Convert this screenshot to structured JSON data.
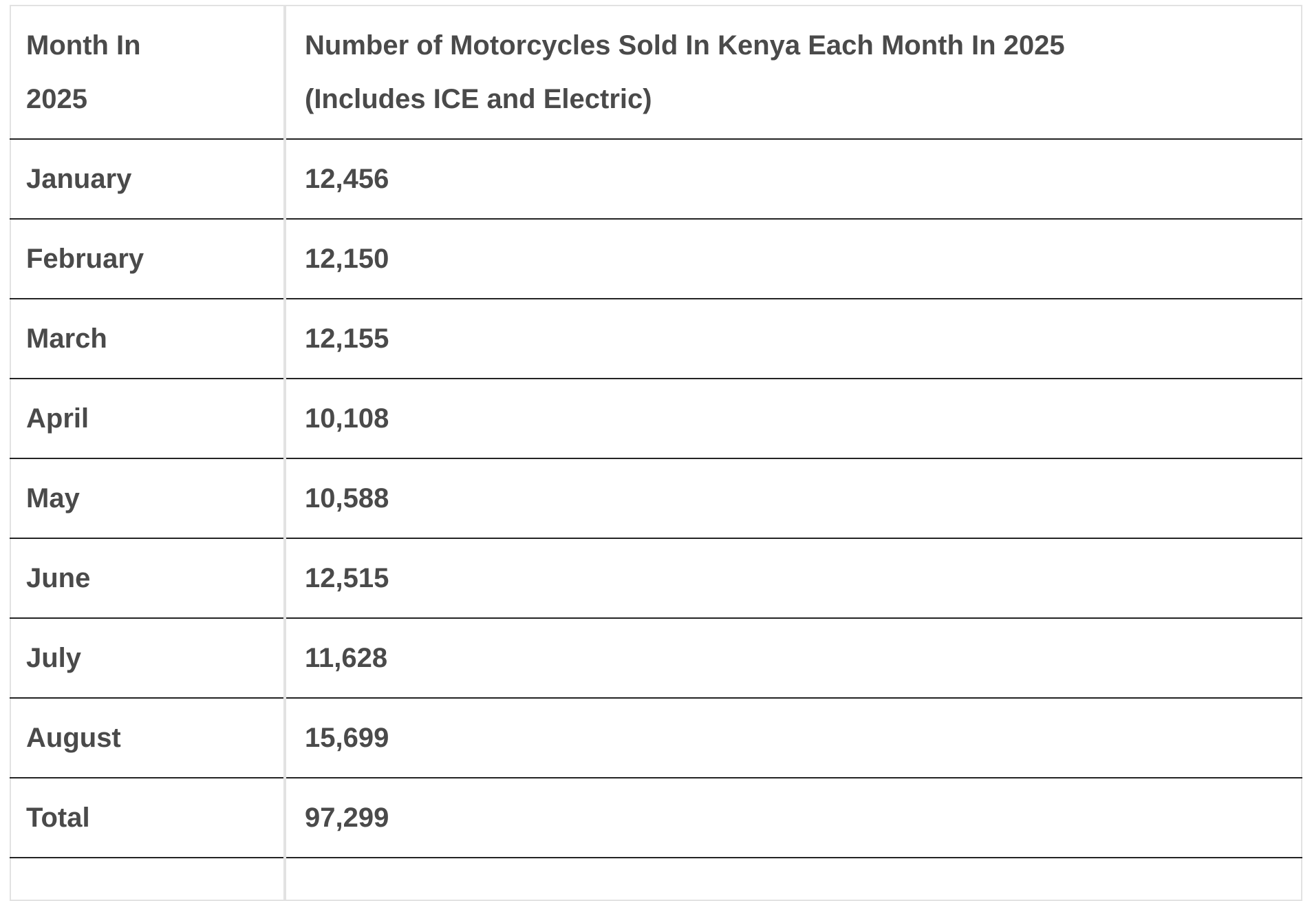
{
  "table": {
    "header": {
      "col1_lines": [
        "Month In",
        "2025"
      ],
      "col2_lines": [
        "Number of Motorcycles Sold In Kenya Each Month In 2025",
        "(Includes ICE and Electric)"
      ]
    },
    "rows": [
      {
        "label": "January",
        "value": "12,456"
      },
      {
        "label": "February",
        "value": "12,150"
      },
      {
        "label": "March",
        "value": "12,155"
      },
      {
        "label": "April",
        "value": "10,108"
      },
      {
        "label": "May",
        "value": "10,588"
      },
      {
        "label": "June",
        "value": "12,515"
      },
      {
        "label": "July",
        "value": "11,628"
      },
      {
        "label": "August",
        "value": "15,699"
      },
      {
        "label": "Total",
        "value": "97,299"
      }
    ]
  },
  "colors": {
    "text": "#4a4a4a",
    "row_separator": "#232323",
    "grid_light": "#e2e2e2",
    "background": "#ffffff"
  },
  "chart_data": {
    "type": "table",
    "title": "Number of Motorcycles Sold In Kenya Each Month In 2025 (Includes ICE and Electric)",
    "columns": [
      "Month In 2025",
      "Number of Motorcycles Sold In Kenya Each Month In 2025 (Includes ICE and Electric)"
    ],
    "categories": [
      "January",
      "February",
      "March",
      "April",
      "May",
      "June",
      "July",
      "August",
      "Total"
    ],
    "values": [
      12456,
      12150,
      12155,
      10108,
      10588,
      12515,
      11628,
      15699,
      97299
    ]
  }
}
